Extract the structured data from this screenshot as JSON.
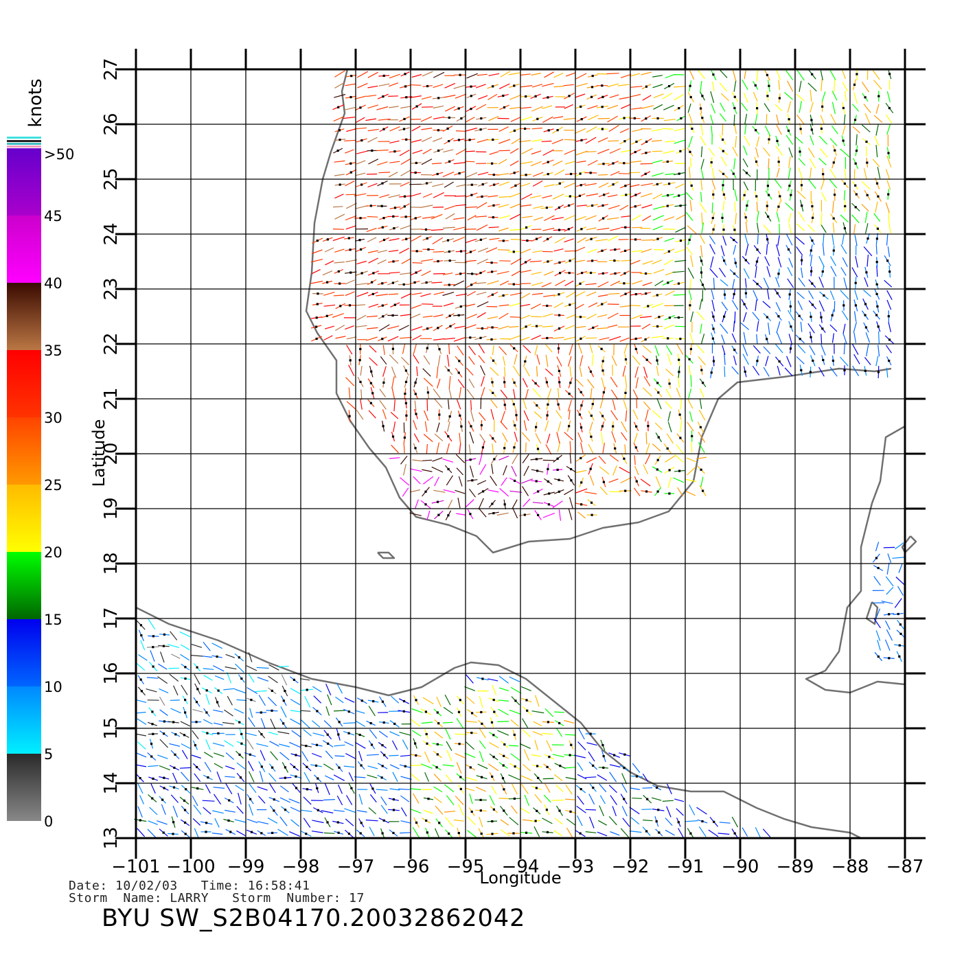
{
  "colorbar": {
    "unit_label": "knots",
    "tick_labels": [
      "0",
      "5",
      "10",
      "15",
      "20",
      "25",
      "30",
      "35",
      "40",
      "45",
      ">50"
    ],
    "bands": [
      {
        "from": 0,
        "to": 5,
        "colors": [
          "#888888",
          "#2a2a2a"
        ]
      },
      {
        "from": 5,
        "to": 10,
        "colors": [
          "#00f0ff",
          "#0088ff"
        ]
      },
      {
        "from": 10,
        "to": 15,
        "colors": [
          "#0066ff",
          "#0000ee"
        ]
      },
      {
        "from": 15,
        "to": 20,
        "colors": [
          "#006600",
          "#00ff00"
        ]
      },
      {
        "from": 20,
        "to": 25,
        "colors": [
          "#ffff00",
          "#ffbb00"
        ]
      },
      {
        "from": 25,
        "to": 30,
        "colors": [
          "#ff9900",
          "#ff4400"
        ]
      },
      {
        "from": 30,
        "to": 35,
        "colors": [
          "#ff3300",
          "#ff0000"
        ]
      },
      {
        "from": 35,
        "to": 40,
        "colors": [
          "#bb7744",
          "#3a0a00"
        ]
      },
      {
        "from": 40,
        "to": 45,
        "colors": [
          "#ff00ff",
          "#cc00cc"
        ]
      },
      {
        "from": 45,
        "to": 50,
        "colors": [
          "#aa00cc",
          "#6600cc"
        ]
      }
    ]
  },
  "axes": {
    "xlabel": "Longitude",
    "ylabel": "Latitude",
    "lon_range": [
      -101,
      -87
    ],
    "lat_range": [
      13,
      27
    ],
    "lon_ticks": [
      "−101",
      "−100",
      "−99",
      "−98",
      "−97",
      "−96",
      "−95",
      "−94",
      "−93",
      "−92",
      "−91",
      "−90",
      "−89",
      "−88",
      "−87"
    ],
    "lat_ticks": [
      "13",
      "14",
      "15",
      "16",
      "17",
      "18",
      "19",
      "20",
      "21",
      "22",
      "23",
      "24",
      "25",
      "26",
      "27"
    ]
  },
  "info": {
    "date_line": "Date: 10/02/03   Time: 16:58:41",
    "storm_line": "Storm  Name: LARRY   Storm  Number: 17",
    "title": "BYU  SW_S2B04170.20032862042"
  },
  "coastline_color": "#707070"
}
